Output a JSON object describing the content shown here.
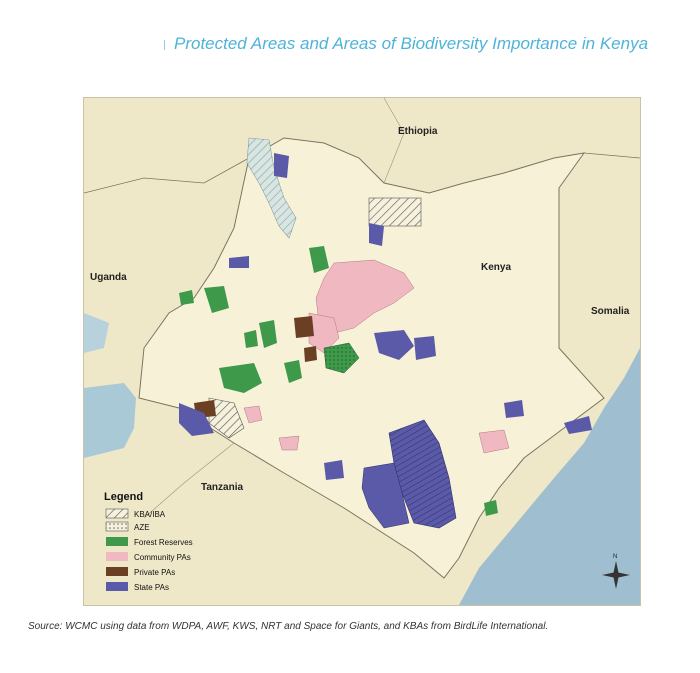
{
  "title": "Protected Areas and Areas of Biodiversity Importance in Kenya",
  "labels": {
    "ethiopia": "Ethiopia",
    "kenya": "Kenya",
    "uganda": "Uganda",
    "somalia": "Somalia",
    "tanzania": "Tanzania"
  },
  "legend": {
    "title": "Legend",
    "items": [
      {
        "label": "KBA/IBA",
        "style": "hatch"
      },
      {
        "label": "AZE",
        "style": "dots"
      },
      {
        "label": "Forest Reserves",
        "color": "#3e9a4a"
      },
      {
        "label": "Community PAs",
        "color": "#f0b8c0"
      },
      {
        "label": "Private PAs",
        "color": "#6b3f23"
      },
      {
        "label": "State PAs",
        "color": "#5a5aa8"
      }
    ]
  },
  "compass": {
    "north": "N"
  },
  "source": "Source: WCMC using data from WDPA, AWF, KWS, NRT and Space for Giants, and KBAs from BirdLife International.",
  "colors": {
    "land": "#f3edcf",
    "kenya": "#f7f1d8",
    "water": "#a9c9d6",
    "ocean": "#9fbfd0",
    "forest": "#3e9a4a",
    "community": "#f0b8c0",
    "private": "#6b3f23",
    "state": "#5a5aa8",
    "title": "#4fb3d9"
  }
}
